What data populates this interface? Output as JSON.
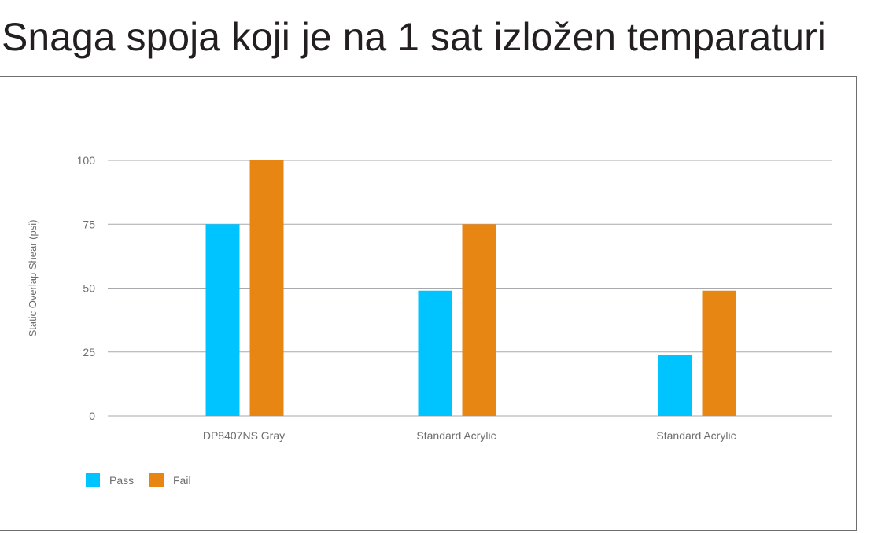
{
  "title": "Snaga spoja koji je na 1 sat izložen temparaturi",
  "chart_data": {
    "type": "bar",
    "categories": [
      "DP8407NS Gray",
      "Standard Acrylic",
      "Standard Acrylic"
    ],
    "series": [
      {
        "name": "Pass",
        "color": "#00c4ff",
        "values": [
          75,
          49,
          24
        ]
      },
      {
        "name": "Fail",
        "color": "#e88614",
        "values": [
          100,
          75,
          49
        ]
      }
    ],
    "yticks": [
      0,
      25,
      50,
      75,
      100
    ],
    "ylim": [
      0,
      100
    ],
    "ylabel": "Static Overlap Shear (psi)",
    "xlabel": "",
    "grid": true,
    "legend_position": "bottom-left"
  }
}
